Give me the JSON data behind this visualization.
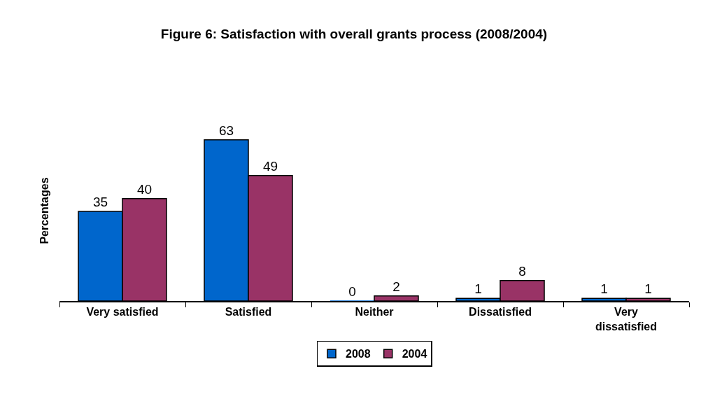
{
  "chart_data": {
    "type": "bar",
    "title": "Figure 6: Satisfaction with overall grants process (2008/2004)",
    "ylabel": "Percentages",
    "categories": [
      "Very satisfied",
      "Satisfied",
      "Neither",
      "Dissatisfied",
      "Very dissatisfied"
    ],
    "series": [
      {
        "name": "2008",
        "color": "#0066cc",
        "values": [
          35,
          63,
          0,
          1,
          1
        ]
      },
      {
        "name": "2004",
        "color": "#993366",
        "values": [
          40,
          49,
          2,
          8,
          1
        ]
      }
    ],
    "data_labels": true,
    "legend": "bottom",
    "grid": false
  }
}
